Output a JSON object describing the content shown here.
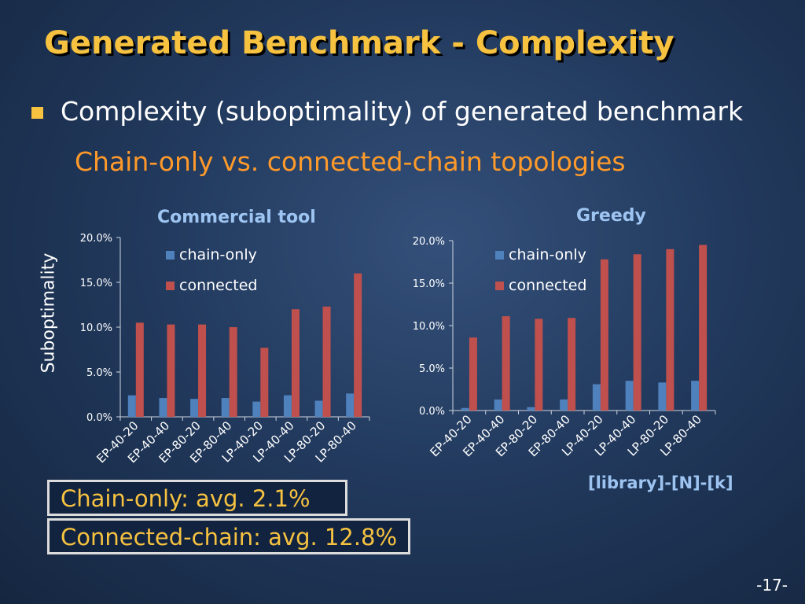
{
  "slide": {
    "title": "Generated Benchmark - Complexity",
    "bullet": "Complexity (suboptimality) of generated benchmark",
    "sub_bullet": "Chain-only vs. connected-chain topologies",
    "y_axis_label": "Suboptimality",
    "x_axis_note": "[library]-[N]-[k]",
    "summary_chain": "Chain-only: avg. 2.1%",
    "summary_connected": "Connected-chain: avg. 12.8%",
    "page_number": "-17-"
  },
  "colors": {
    "title": "#f6c240",
    "sub_bullet": "#ff9a2a",
    "chain_only": "#4f81bd",
    "connected": "#c0504d",
    "chart_title": "#9ec5f2"
  },
  "chart_data": [
    {
      "type": "bar",
      "title": "Commercial tool",
      "categories": [
        "EP-40-20",
        "EP-40-40",
        "EP-80-20",
        "EP-80-40",
        "LP-40-20",
        "LP-40-40",
        "LP-80-20",
        "LP-80-40"
      ],
      "series": [
        {
          "name": "chain-only",
          "values": [
            2.4,
            2.1,
            2.0,
            2.1,
            1.7,
            2.4,
            1.8,
            2.6
          ]
        },
        {
          "name": "connected",
          "values": [
            10.5,
            10.3,
            10.3,
            10.0,
            7.7,
            12.0,
            12.3,
            16.0
          ]
        }
      ],
      "yticks": [
        "0.0%",
        "5.0%",
        "10.0%",
        "15.0%",
        "20.0%"
      ],
      "ylim": [
        0,
        20
      ],
      "legend": "top-left"
    },
    {
      "type": "bar",
      "title": "Greedy",
      "categories": [
        "EP-40-20",
        "EP-40-40",
        "EP-80-20",
        "EP-80-40",
        "LP-40-20",
        "LP-40-40",
        "LP-80-20",
        "LP-80-40"
      ],
      "series": [
        {
          "name": "chain-only",
          "values": [
            0.3,
            1.3,
            0.4,
            1.3,
            3.1,
            3.5,
            3.3,
            3.5
          ]
        },
        {
          "name": "connected",
          "values": [
            8.6,
            11.1,
            10.8,
            10.9,
            17.8,
            18.4,
            19.0,
            19.5
          ]
        }
      ],
      "yticks": [
        "0.0%",
        "5.0%",
        "10.0%",
        "15.0%",
        "20.0%"
      ],
      "ylim": [
        0,
        20
      ],
      "legend": "top-center"
    }
  ]
}
